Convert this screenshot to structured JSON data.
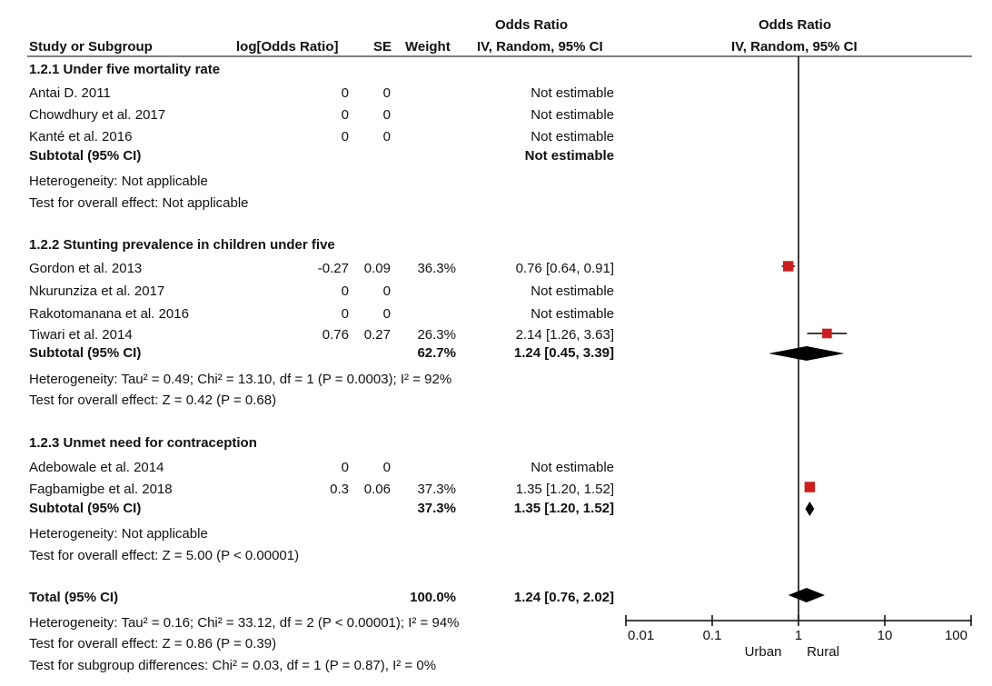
{
  "header": {
    "col_study": "Study or Subgroup",
    "col_log": "log[Odds Ratio]",
    "col_se": "SE",
    "col_weight": "Weight",
    "col_or_top": "Odds Ratio",
    "col_or_bottom": "IV, Random, 95% CI",
    "plot_top": "Odds Ratio",
    "plot_bottom": "IV, Random, 95% CI"
  },
  "groups": [
    {
      "title": "1.2.1 Under five mortality rate",
      "rows": [
        {
          "study": "Antai D. 2011",
          "log": "0",
          "se": "0",
          "weight": "",
          "ci": "Not estimable"
        },
        {
          "study": "Chowdhury et al. 2017",
          "log": "0",
          "se": "0",
          "weight": "",
          "ci": "Not estimable"
        },
        {
          "study": "Kanté et al. 2016",
          "log": "0",
          "se": "0",
          "weight": "",
          "ci": "Not estimable"
        }
      ],
      "subtotal": {
        "label": "Subtotal (95% CI)",
        "weight": "",
        "ci": "Not estimable"
      },
      "heterogeneity": "Heterogeneity: Not applicable",
      "overall": "Test for overall effect: Not applicable"
    },
    {
      "title": "1.2.2 Stunting prevalence in children under five",
      "rows": [
        {
          "study": "Gordon et al. 2013",
          "log": "-0.27",
          "se": "0.09",
          "weight": "36.3%",
          "ci": "0.76 [0.64, 0.91]"
        },
        {
          "study": "Nkurunziza et al. 2017",
          "log": "0",
          "se": "0",
          "weight": "",
          "ci": "Not estimable"
        },
        {
          "study": "Rakotomanana et al. 2016",
          "log": "0",
          "se": "0",
          "weight": "",
          "ci": "Not estimable"
        },
        {
          "study": "Tiwari et al. 2014",
          "log": "0.76",
          "se": "0.27",
          "weight": "26.3%",
          "ci": "2.14 [1.26, 3.63]"
        }
      ],
      "subtotal": {
        "label": "Subtotal (95% CI)",
        "weight": "62.7%",
        "ci": "1.24 [0.45, 3.39]"
      },
      "heterogeneity": "Heterogeneity: Tau² = 0.49; Chi² = 13.10, df = 1 (P = 0.0003); I² = 92%",
      "overall": "Test for overall effect: Z = 0.42 (P = 0.68)"
    },
    {
      "title": "1.2.3 Unmet need for contraception",
      "rows": [
        {
          "study": "Adebowale et al. 2014",
          "log": "0",
          "se": "0",
          "weight": "",
          "ci": "Not estimable"
        },
        {
          "study": "Fagbamigbe et al. 2018",
          "log": "0.3",
          "se": "0.06",
          "weight": "37.3%",
          "ci": "1.35 [1.20, 1.52]"
        }
      ],
      "subtotal": {
        "label": "Subtotal (95% CI)",
        "weight": "37.3%",
        "ci": "1.35 [1.20, 1.52]"
      },
      "heterogeneity": "Heterogeneity: Not applicable",
      "overall": "Test for overall effect: Z = 5.00 (P < 0.00001)"
    }
  ],
  "total": {
    "label": "Total (95% CI)",
    "weight": "100.0%",
    "ci": "1.24 [0.76, 2.02]",
    "heterogeneity": "Heterogeneity: Tau² = 0.16; Chi² = 33.12, df = 2 (P < 0.00001); I² = 94%",
    "overall": "Test for overall effect: Z = 0.86 (P = 0.39)",
    "subgroup": "Test for subgroup differences: Chi² = 0.03, df = 1 (P = 0.87), I² = 0%"
  },
  "axis": {
    "ticks": [
      "0.01",
      "0.1",
      "1",
      "10",
      "100"
    ],
    "left_label": "Urban",
    "right_label": "Rural"
  },
  "colors": {
    "study_marker": "#cc1e1e",
    "diamond": "#000000",
    "line": "#000000"
  },
  "chart_data": {
    "type": "forest",
    "scale": "log",
    "xlim": [
      0.01,
      100
    ],
    "reference_line": 1,
    "studies": [
      {
        "name": "Gordon et al. 2013",
        "or": 0.76,
        "lo": 0.64,
        "hi": 0.91,
        "weight": 36.3
      },
      {
        "name": "Tiwari et al. 2014",
        "or": 2.14,
        "lo": 1.26,
        "hi": 3.63,
        "weight": 26.3
      },
      {
        "name": "Fagbamigbe et al. 2018",
        "or": 1.35,
        "lo": 1.2,
        "hi": 1.52,
        "weight": 37.3
      }
    ],
    "summaries": [
      {
        "name": "1.2.2 Subtotal (95% CI)",
        "or": 1.24,
        "lo": 0.45,
        "hi": 3.39
      },
      {
        "name": "1.2.3 Subtotal (95% CI)",
        "or": 1.35,
        "lo": 1.2,
        "hi": 1.52
      },
      {
        "name": "Total (95% CI)",
        "or": 1.24,
        "lo": 0.76,
        "hi": 2.02
      }
    ]
  }
}
